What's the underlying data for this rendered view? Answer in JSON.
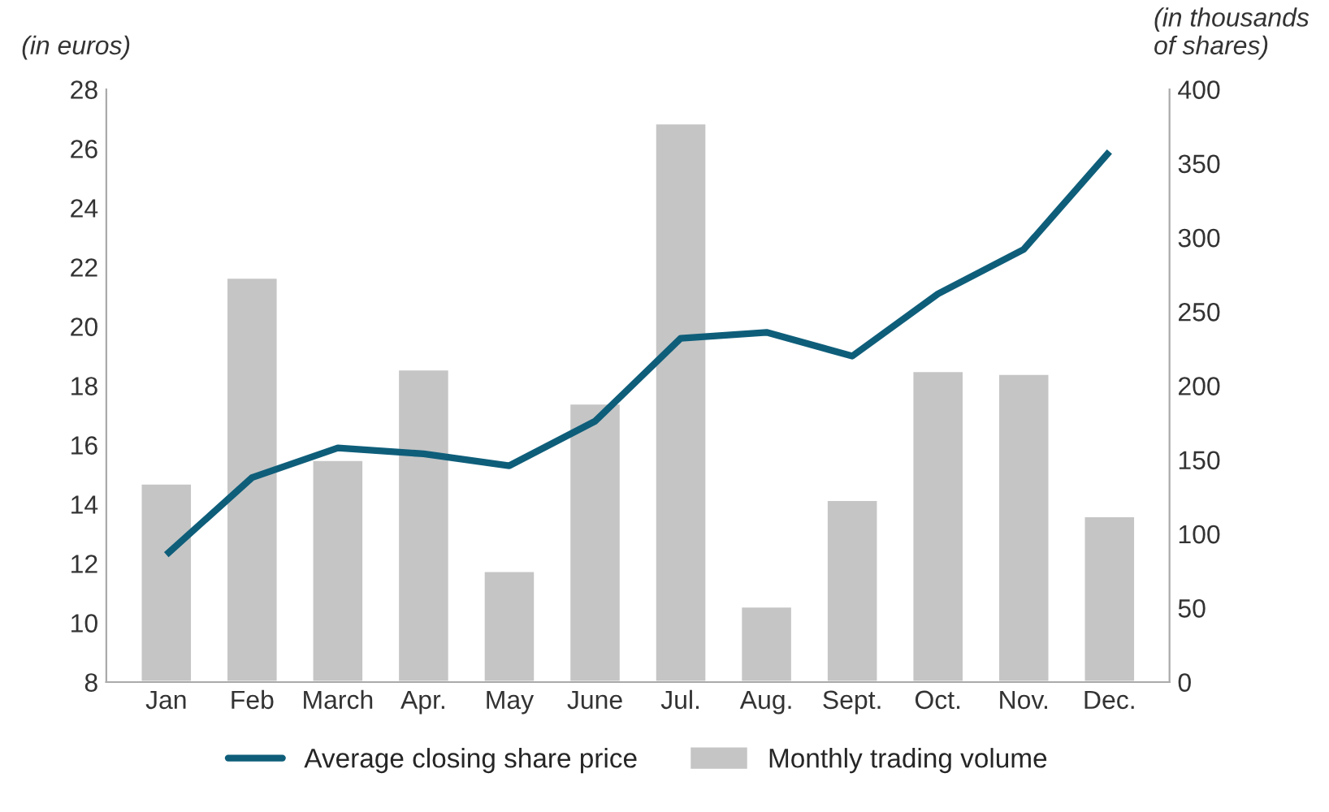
{
  "chart_data": {
    "type": "bar",
    "ylabel": "(in euros)",
    "y2label": "(in thousands\nof shares)",
    "categories": [
      "Jan",
      "Feb",
      "March",
      "Apr.",
      "May",
      "June",
      "Jul.",
      "Aug.",
      "Sept.",
      "Oct.",
      "Nov.",
      "Dec."
    ],
    "series": [
      {
        "name": "Average closing share price",
        "type": "line",
        "color": "#0e5e7a",
        "values": [
          12.3,
          14.9,
          15.9,
          15.7,
          15.3,
          16.8,
          19.6,
          19.8,
          19.0,
          21.1,
          22.6,
          25.9
        ]
      },
      {
        "name": "Monthly trading volume",
        "axis": "y2",
        "color": "#c5c5c5",
        "values": [
          134,
          273,
          150,
          211,
          75,
          188,
          377,
          51,
          123,
          210,
          208,
          112
        ]
      }
    ],
    "ylim": [
      8,
      28
    ],
    "yticks": [
      8,
      10,
      12,
      14,
      16,
      18,
      20,
      22,
      24,
      26,
      28
    ],
    "y2lim": [
      0,
      400
    ],
    "y2ticks": [
      0,
      50,
      100,
      150,
      200,
      250,
      300,
      350,
      400
    ],
    "grid": false,
    "legend": "bottom",
    "marker": "none",
    "line_style": "solid"
  }
}
